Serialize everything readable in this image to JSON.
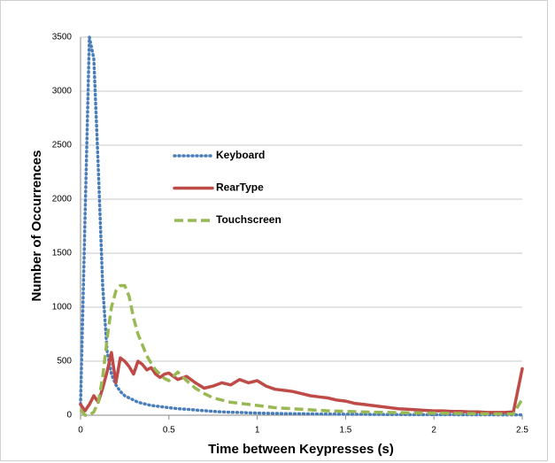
{
  "chart_data": {
    "type": "line",
    "x_label": "Time between Keypresses (s)",
    "y_label": "Number of Occurrences",
    "x": [
      0,
      0.025,
      0.05,
      0.075,
      0.1,
      0.125,
      0.15,
      0.175,
      0.2,
      0.225,
      0.25,
      0.275,
      0.3,
      0.325,
      0.35,
      0.375,
      0.4,
      0.425,
      0.45,
      0.475,
      0.5,
      0.55,
      0.6,
      0.65,
      0.7,
      0.75,
      0.8,
      0.85,
      0.9,
      0.95,
      1.0,
      1.05,
      1.1,
      1.15,
      1.2,
      1.25,
      1.3,
      1.35,
      1.4,
      1.45,
      1.5,
      1.55,
      1.6,
      1.65,
      1.7,
      1.75,
      1.8,
      1.85,
      1.9,
      1.95,
      2.0,
      2.05,
      2.1,
      2.15,
      2.2,
      2.25,
      2.3,
      2.35,
      2.4,
      2.45,
      2.5
    ],
    "series": [
      {
        "name": "Keyboard",
        "color": "#4a7ebb",
        "dash": "dotted",
        "values": [
          100,
          1800,
          3500,
          3300,
          2300,
          1200,
          600,
          380,
          280,
          220,
          180,
          160,
          140,
          120,
          110,
          100,
          90,
          85,
          80,
          75,
          70,
          60,
          55,
          48,
          42,
          35,
          30,
          27,
          25,
          22,
          20,
          18,
          16,
          15,
          14,
          13,
          12,
          11,
          10,
          10,
          9,
          8,
          8,
          7,
          7,
          6,
          6,
          6,
          5,
          5,
          5,
          5,
          5,
          4,
          4,
          4,
          4,
          3,
          3,
          3,
          3
        ]
      },
      {
        "name": "RearType",
        "color": "#be4b48",
        "dash": "solid",
        "values": [
          100,
          40,
          100,
          180,
          120,
          250,
          400,
          580,
          300,
          530,
          500,
          450,
          380,
          500,
          470,
          420,
          440,
          380,
          350,
          380,
          390,
          330,
          360,
          300,
          250,
          270,
          300,
          280,
          330,
          300,
          320,
          270,
          240,
          230,
          220,
          200,
          180,
          170,
          160,
          140,
          130,
          110,
          100,
          90,
          80,
          70,
          60,
          55,
          50,
          45,
          40,
          40,
          35,
          35,
          30,
          30,
          25,
          25,
          25,
          30,
          430
        ]
      },
      {
        "name": "Touchscreen",
        "color": "#98b954",
        "dash": "dashed",
        "values": [
          50,
          0,
          0,
          30,
          120,
          350,
          700,
          1000,
          1150,
          1200,
          1200,
          1100,
          900,
          750,
          650,
          550,
          480,
          420,
          380,
          340,
          320,
          400,
          320,
          250,
          200,
          160,
          140,
          120,
          110,
          100,
          90,
          80,
          70,
          65,
          60,
          55,
          50,
          45,
          40,
          38,
          35,
          33,
          30,
          28,
          26,
          25,
          24,
          22,
          21,
          20,
          20,
          18,
          17,
          16,
          15,
          14,
          13,
          12,
          11,
          10,
          150
        ]
      }
    ],
    "xlim": [
      0,
      2.5
    ],
    "xticks": [
      0,
      0.5,
      1,
      1.5,
      2,
      2.5
    ],
    "ylim": [
      0,
      3500
    ],
    "yticks": [
      0,
      500,
      1000,
      1500,
      2000,
      2500,
      3000,
      3500
    ],
    "grid": true,
    "legend": "inside-left"
  }
}
